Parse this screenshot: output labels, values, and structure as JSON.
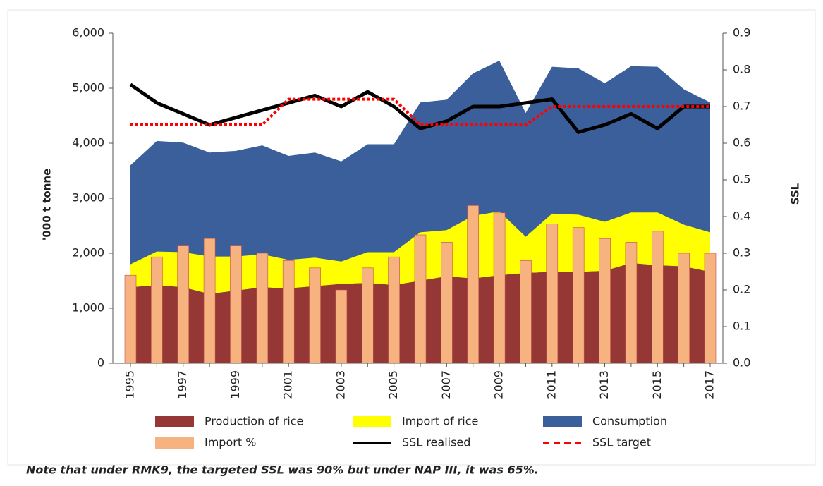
{
  "chart_data": {
    "type": "combo",
    "y_label": "'000 t tonne",
    "y2_label": "SSL",
    "note": "Note that under RMK9, the targeted SSL was 90% but under NAP III, it was 65%.",
    "categories": [
      "1995",
      null,
      "1997",
      null,
      "1999",
      null,
      "2001",
      null,
      "2003",
      null,
      "2005",
      null,
      "2007",
      null,
      "2009",
      null,
      "2011",
      null,
      "2013",
      null,
      "2015",
      null,
      "2017"
    ],
    "ylim": [
      0,
      6000
    ],
    "yticks": [
      0,
      {
        "value": 1000,
        "label": "1,000"
      },
      {
        "value": 2000,
        "label": "2,000"
      },
      {
        "value": 3000,
        "label": "3,000"
      },
      {
        "value": 4000,
        "label": "4,000"
      },
      {
        "value": 5000,
        "label": "5,000"
      },
      {
        "value": 6000,
        "label": "6,000"
      }
    ],
    "y2lim": [
      0,
      0.9
    ],
    "y2ticks": [
      {
        "value": 0,
        "label": "0.0"
      },
      0.1,
      0.2,
      0.3,
      0.4,
      0.5,
      0.6,
      0.7,
      0.8,
      0.9
    ],
    "series": [
      {
        "name": "Production of rice",
        "type": "area",
        "color": "#953735",
        "values": [
          1380,
          1420,
          1380,
          1260,
          1320,
          1380,
          1360,
          1400,
          1440,
          1460,
          1420,
          1500,
          1580,
          1540,
          1600,
          1640,
          1660,
          1660,
          1680,
          1820,
          1780,
          1760,
          1660
        ]
      },
      {
        "name": "Import of rice",
        "type": "area",
        "color": "#ffff00",
        "stacked": true,
        "values": [
          420,
          610,
          640,
          680,
          620,
          600,
          520,
          520,
          410,
          560,
          600,
          880,
          840,
          1140,
          1160,
          660,
          1060,
          1040,
          890,
          920,
          960,
          760,
          720
        ]
      },
      {
        "name": "Consumption",
        "type": "area",
        "color": "#3a5f9a",
        "values": [
          3600,
          4040,
          4010,
          3830,
          3860,
          3960,
          3770,
          3830,
          3670,
          3980,
          3980,
          4740,
          4790,
          5270,
          5500,
          4550,
          5390,
          5360,
          5090,
          5400,
          5390,
          4980,
          4740
        ]
      },
      {
        "name": "Import %",
        "type": "bar",
        "axis": "y2",
        "color": "#f7b37f",
        "values": [
          0.24,
          0.29,
          0.32,
          0.34,
          0.32,
          0.3,
          0.28,
          0.26,
          0.2,
          0.26,
          0.29,
          0.35,
          0.33,
          0.43,
          0.41,
          0.28,
          0.38,
          0.37,
          0.34,
          0.33,
          0.36,
          0.3,
          0.3
        ]
      },
      {
        "name": "SSL realised",
        "type": "line",
        "axis": "y2",
        "color": "#000000",
        "linestyle": "solid",
        "values": [
          0.76,
          0.71,
          0.68,
          0.65,
          0.67,
          0.69,
          0.71,
          0.73,
          0.7,
          0.74,
          0.7,
          0.64,
          0.66,
          0.7,
          0.7,
          0.71,
          0.72,
          0.63,
          0.65,
          0.68,
          0.64,
          0.7,
          0.7
        ]
      },
      {
        "name": "SSL target",
        "type": "line",
        "axis": "y2",
        "color": "#ff0000",
        "linestyle": "dashed",
        "values": [
          0.65,
          0.65,
          0.65,
          0.65,
          0.65,
          0.65,
          0.72,
          0.72,
          0.72,
          0.72,
          0.72,
          0.65,
          0.65,
          0.65,
          0.65,
          0.65,
          0.7,
          0.7,
          0.7,
          0.7,
          0.7,
          0.7,
          0.7
        ]
      }
    ]
  }
}
